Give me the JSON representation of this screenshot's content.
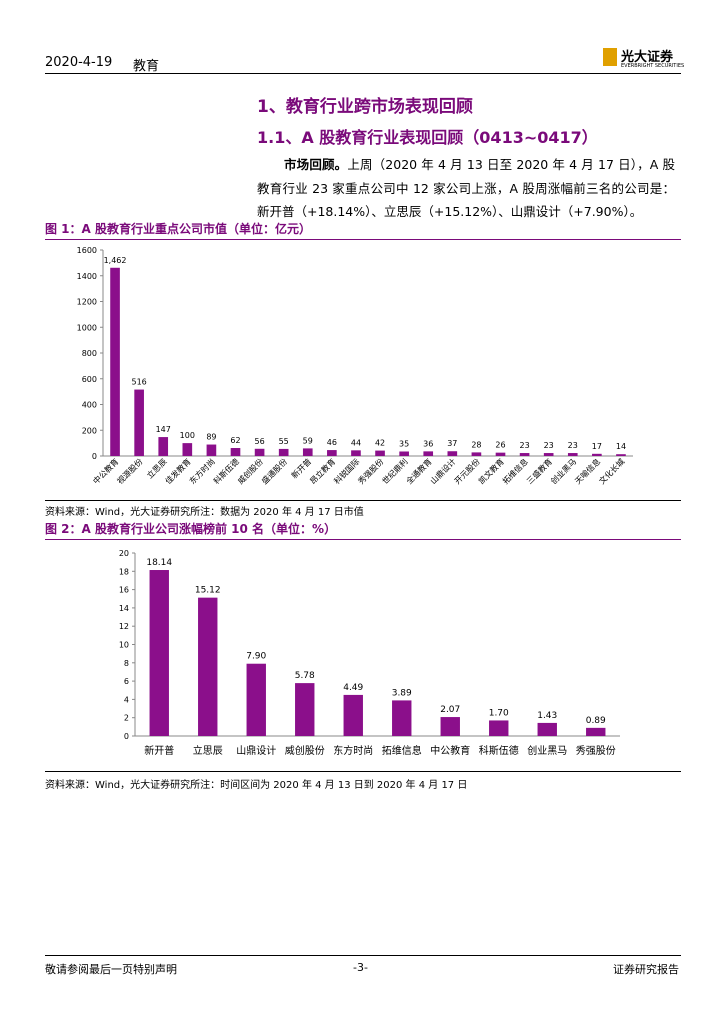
{
  "header": {
    "date": "2020-4-19",
    "sector": "教育",
    "logo": "光大证券",
    "logo_sub": "EVERBRIGHT SECURITIES"
  },
  "section_title": "1、教育行业跨市场表现回顾",
  "subsection_title": "1.1、A 股教育行业表现回顾（0413~0417）",
  "paragraph": {
    "lead": "市场回顾。",
    "text": "上周（2020 年 4 月 13 日至 2020 年 4 月 17 日），A 股教育行业 23 家重点公司中 12 家公司上涨，A 股周涨幅前三名的公司是：新开普（+18.14%）、立思辰（+15.12%）、山鼎设计（+7.90%）。"
  },
  "figures": [
    {
      "caption": "图 1：A 股教育行业重点公司市值（单位：亿元）",
      "source": "资料来源：Wind，光大证券研究所注：数据为 2020 年 4 月 17 日市值"
    },
    {
      "caption": "图 2：A 股教育行业公司涨幅榜前 10 名（单位：%）",
      "source": "资料来源：Wind，光大证券研究所注：时间区间为 2020 年 4 月 13 日到 2020 年 4 月 17 日"
    }
  ],
  "chart_data": [
    {
      "type": "bar",
      "color": "#8b0f8b",
      "label_rotate": true,
      "categories": [
        "中公教育",
        "视源股份",
        "立思辰",
        "佳发教育",
        "东方时尚",
        "科斯伍德",
        "威创股份",
        "盛通股份",
        "新开普",
        "昂立教育",
        "科锐国际",
        "秀强股份",
        "世纪鼎利",
        "全通教育",
        "山鼎设计",
        "开元股份",
        "凯文教育",
        "拓维信息",
        "三盛教育",
        "创业黑马",
        "天喻信息",
        "文化长城"
      ],
      "values": [
        1462,
        516,
        147,
        100,
        89,
        62,
        56,
        55,
        59,
        46,
        44,
        42,
        35,
        36,
        37,
        28,
        26,
        23,
        23,
        23,
        17,
        14
      ],
      "value_labels": [
        "1,462",
        "516",
        "147",
        "100",
        "89",
        "62",
        "56",
        "55",
        "59",
        "46",
        "44",
        "42",
        "35",
        "36",
        "37",
        "28",
        "26",
        "23",
        "23",
        "23",
        "17",
        "14"
      ],
      "ylim": [
        0,
        1600
      ],
      "yticks": [
        0,
        200,
        400,
        600,
        800,
        1000,
        1200,
        1400,
        1600
      ]
    },
    {
      "type": "bar",
      "color": "#8b0f8b",
      "label_rotate": false,
      "categories": [
        "新开普",
        "立思辰",
        "山鼎设计",
        "威创股份",
        "东方时尚",
        "拓维信息",
        "中公教育",
        "科斯伍德",
        "创业黑马",
        "秀强股份"
      ],
      "values": [
        18.14,
        15.12,
        7.9,
        5.78,
        4.49,
        3.89,
        2.07,
        1.7,
        1.43,
        0.89
      ],
      "value_labels": [
        "18.14",
        "15.12",
        "7.90",
        "5.78",
        "4.49",
        "3.89",
        "2.07",
        "1.70",
        "1.43",
        "0.89"
      ],
      "ylim": [
        0,
        20
      ],
      "yticks": [
        0,
        2,
        4,
        6,
        8,
        10,
        12,
        14,
        16,
        18,
        20
      ]
    }
  ],
  "footer": {
    "left": "敬请参阅最后一页特别声明",
    "center": "-3-",
    "right": "证券研究报告"
  }
}
